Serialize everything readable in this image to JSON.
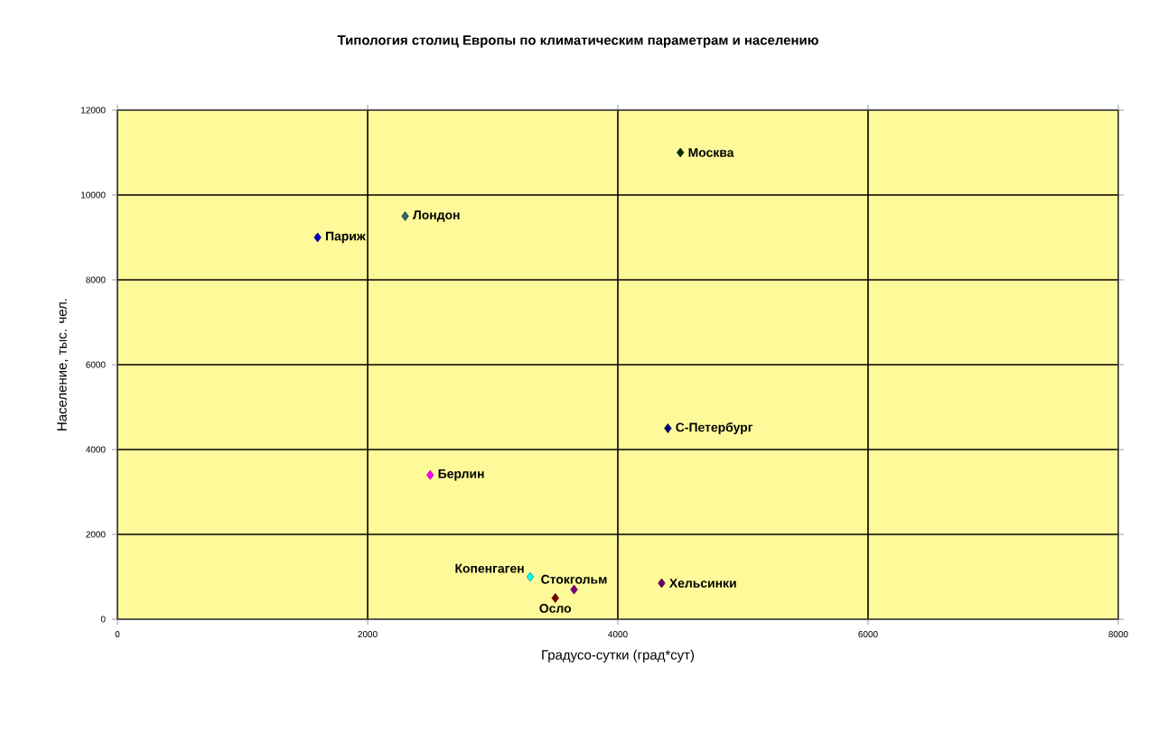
{
  "chart_data": {
    "type": "scatter",
    "title": "Типология столиц Европы по климатическим параметрам и населению",
    "xlabel": "Градусо-сутки (град*сут)",
    "ylabel": "Население, тыс. чел.",
    "xlim": [
      0,
      8000
    ],
    "xticks": [
      0,
      2000,
      4000,
      6000,
      8000
    ],
    "ylim": [
      0,
      12000
    ],
    "yticks": [
      0,
      2000,
      4000,
      6000,
      8000,
      10000,
      12000
    ],
    "grid": true,
    "marker": "diamond",
    "series": [
      {
        "name": "Париж",
        "color": "#0000cc",
        "x": [
          1600
        ],
        "values": [
          9000
        ]
      },
      {
        "name": "Лондон",
        "color": "#336666",
        "x": [
          2300
        ],
        "values": [
          9500
        ]
      },
      {
        "name": "Москва",
        "color": "#003300",
        "x": [
          4500
        ],
        "values": [
          11000
        ]
      },
      {
        "name": "С-Петербург",
        "color": "#000080",
        "x": [
          4400
        ],
        "values": [
          4500
        ]
      },
      {
        "name": "Берлин",
        "color": "#ff00ff",
        "x": [
          2500
        ],
        "values": [
          3400
        ]
      },
      {
        "name": "Копенгаген",
        "color": "#00ffff",
        "x": [
          3300
        ],
        "values": [
          1000
        ]
      },
      {
        "name": "Осло",
        "color": "#800000",
        "x": [
          3500
        ],
        "values": [
          500
        ]
      },
      {
        "name": "Стокгольм",
        "color": "#800080",
        "x": [
          3650
        ],
        "values": [
          700
        ]
      },
      {
        "name": "Хельсинки",
        "color": "#660066",
        "x": [
          4350
        ],
        "values": [
          850
        ]
      }
    ]
  }
}
